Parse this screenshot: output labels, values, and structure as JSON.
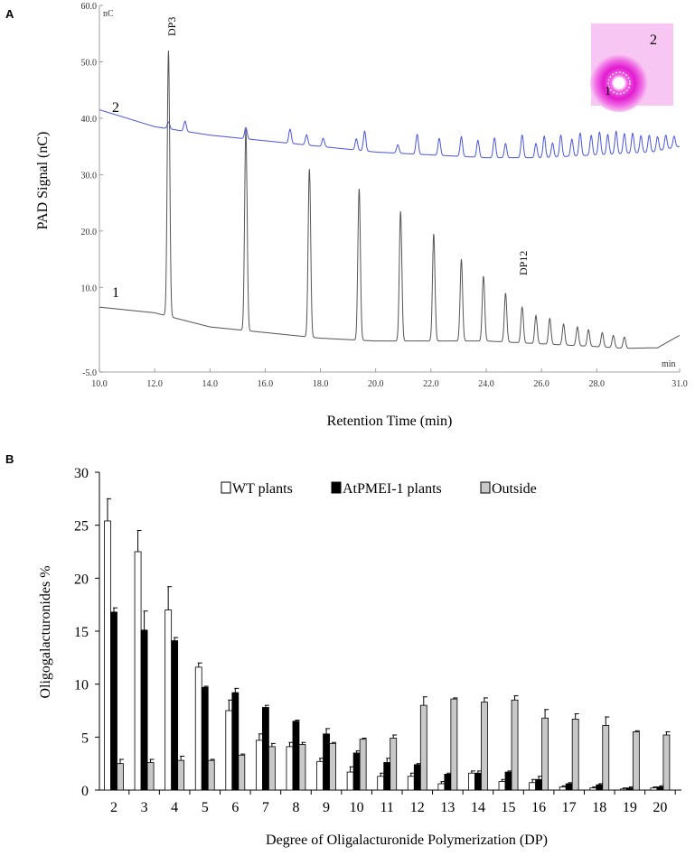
{
  "chart_data": [
    {
      "type": "line",
      "panel_label": "A",
      "xlabel": "Retention Time (min)",
      "ylabel": "PAD Signal (nC)",
      "y_unit_label": "nC",
      "x_unit_label": "min",
      "xlim": [
        10.0,
        31.0
      ],
      "ylim": [
        -5.0,
        60.0
      ],
      "x_ticks": [
        "10.0",
        "12.0",
        "14.0",
        "16.0",
        "18.0",
        "20.0",
        "22.0",
        "24.0",
        "26.0",
        "28.0",
        "31.0"
      ],
      "y_ticks": [
        "-5.0",
        "10.0",
        "20.0",
        "30.0",
        "40.0",
        "50.0",
        "60.0"
      ],
      "annotations": [
        "DP3",
        "DP12"
      ],
      "series": [
        {
          "name": "1",
          "color": "#555555",
          "baseline": [
            [
              10.0,
              6.5
            ],
            [
              12.0,
              5.5
            ],
            [
              14.0,
              3.0
            ],
            [
              16.0,
              2.0
            ],
            [
              18.0,
              1.0
            ],
            [
              20.0,
              0.5
            ],
            [
              22.0,
              0.5
            ],
            [
              24.0,
              0.5
            ],
            [
              26.0,
              0.0
            ],
            [
              28.0,
              -0.5
            ],
            [
              29.0,
              -0.8
            ],
            [
              30.2,
              -0.7
            ],
            [
              31.0,
              1.5
            ]
          ],
          "peaks": [
            [
              12.5,
              52.0
            ],
            [
              15.3,
              38.0
            ],
            [
              17.6,
              31.0
            ],
            [
              19.4,
              27.5
            ],
            [
              20.9,
              23.5
            ],
            [
              22.1,
              19.5
            ],
            [
              23.1,
              15.0
            ],
            [
              23.9,
              12.0
            ],
            [
              24.7,
              9.0
            ],
            [
              25.3,
              6.5
            ],
            [
              25.8,
              5.0
            ],
            [
              26.3,
              4.5
            ],
            [
              26.8,
              3.5
            ],
            [
              27.3,
              3.0
            ],
            [
              27.7,
              2.5
            ],
            [
              28.2,
              2.0
            ],
            [
              28.6,
              1.5
            ],
            [
              29.0,
              1.2
            ]
          ]
        },
        {
          "name": "2",
          "color": "#4a55e0",
          "baseline": [
            [
              10.0,
              41.5
            ],
            [
              12.0,
              38.5
            ],
            [
              14.0,
              37.0
            ],
            [
              16.0,
              36.0
            ],
            [
              18.0,
              35.0
            ],
            [
              20.0,
              34.0
            ],
            [
              22.0,
              33.5
            ],
            [
              24.0,
              33.0
            ],
            [
              26.0,
              33.0
            ],
            [
              28.0,
              33.5
            ],
            [
              30.0,
              34.0
            ],
            [
              31.0,
              35.0
            ]
          ],
          "peaks": [
            [
              12.5,
              1.2
            ],
            [
              13.1,
              1.8
            ],
            [
              15.3,
              2.0
            ],
            [
              16.9,
              2.5
            ],
            [
              17.5,
              1.8
            ],
            [
              18.1,
              1.5
            ],
            [
              19.3,
              2.0
            ],
            [
              19.6,
              3.5
            ],
            [
              20.8,
              1.5
            ],
            [
              21.5,
              3.5
            ],
            [
              22.3,
              3.0
            ],
            [
              23.1,
              3.5
            ],
            [
              23.7,
              3.0
            ],
            [
              24.3,
              3.5
            ],
            [
              24.7,
              2.5
            ],
            [
              25.3,
              4.0
            ],
            [
              25.8,
              2.5
            ],
            [
              26.1,
              3.8
            ],
            [
              26.4,
              2.5
            ],
            [
              26.7,
              3.8
            ],
            [
              27.1,
              3.0
            ],
            [
              27.4,
              4.0
            ],
            [
              27.8,
              3.5
            ],
            [
              28.1,
              4.0
            ],
            [
              28.4,
              3.5
            ],
            [
              28.7,
              4.0
            ],
            [
              29.0,
              3.5
            ],
            [
              29.3,
              3.5
            ],
            [
              29.6,
              3.0
            ],
            [
              29.9,
              3.0
            ],
            [
              30.2,
              2.5
            ],
            [
              30.5,
              2.5
            ],
            [
              30.8,
              2.0
            ]
          ]
        }
      ],
      "inset": {
        "labels": [
          "1",
          "2"
        ],
        "colors": {
          "background": "#f8c6f2",
          "halo": "#ee33dd",
          "center": "#ffffff"
        }
      }
    },
    {
      "type": "bar",
      "panel_label": "B",
      "title": "",
      "xlabel": "Degree of Oligalacturonide Polymerization (DP)",
      "ylabel": "Oligogalacturonides  %",
      "ylim": [
        0,
        30
      ],
      "y_ticks": [
        0,
        5,
        10,
        15,
        20,
        25,
        30
      ],
      "legend_position": "top-right",
      "categories": [
        "2",
        "3",
        "4",
        "5",
        "6",
        "7",
        "8",
        "9",
        "10",
        "11",
        "12",
        "13",
        "14",
        "15",
        "16",
        "17",
        "18",
        "19",
        "20"
      ],
      "series": [
        {
          "name": "WT plants",
          "color": "#ffffff",
          "values": [
            25.4,
            22.5,
            17.0,
            11.6,
            7.5,
            4.7,
            4.1,
            2.7,
            1.7,
            1.3,
            1.3,
            0.6,
            1.6,
            0.8,
            0.7,
            0.3,
            0.2,
            0.1,
            0.2
          ],
          "errors": [
            2.1,
            2.0,
            2.2,
            0.4,
            1.0,
            0.6,
            0.4,
            0.3,
            0.5,
            0.3,
            0.3,
            0.2,
            0.2,
            0.2,
            0.3,
            0.1,
            0.1,
            0.1,
            0.1
          ]
        },
        {
          "name": "AtPMEI-1 plants",
          "color": "#000000",
          "values": [
            16.8,
            15.1,
            14.1,
            9.7,
            9.2,
            7.8,
            6.5,
            5.3,
            3.5,
            2.6,
            2.4,
            1.5,
            1.6,
            1.7,
            1.0,
            0.6,
            0.5,
            0.2,
            0.3
          ],
          "errors": [
            0.4,
            1.8,
            0.3,
            0.1,
            0.4,
            0.2,
            0.1,
            0.5,
            0.2,
            0.4,
            0.1,
            0.1,
            0.2,
            0.1,
            0.3,
            0.1,
            0.1,
            0.1,
            0.1
          ]
        },
        {
          "name": "Outside",
          "color": "#c8c8c8",
          "values": [
            2.5,
            2.6,
            2.8,
            2.8,
            3.3,
            4.1,
            4.3,
            4.4,
            4.8,
            4.9,
            8.0,
            8.6,
            8.3,
            8.5,
            6.8,
            6.7,
            6.1,
            5.5,
            5.2
          ],
          "errors": [
            0.4,
            0.3,
            0.4,
            0.1,
            0.1,
            0.3,
            0.2,
            0.1,
            0.1,
            0.3,
            0.8,
            0.1,
            0.4,
            0.4,
            0.8,
            0.5,
            0.8,
            0.1,
            0.3
          ]
        }
      ]
    }
  ]
}
